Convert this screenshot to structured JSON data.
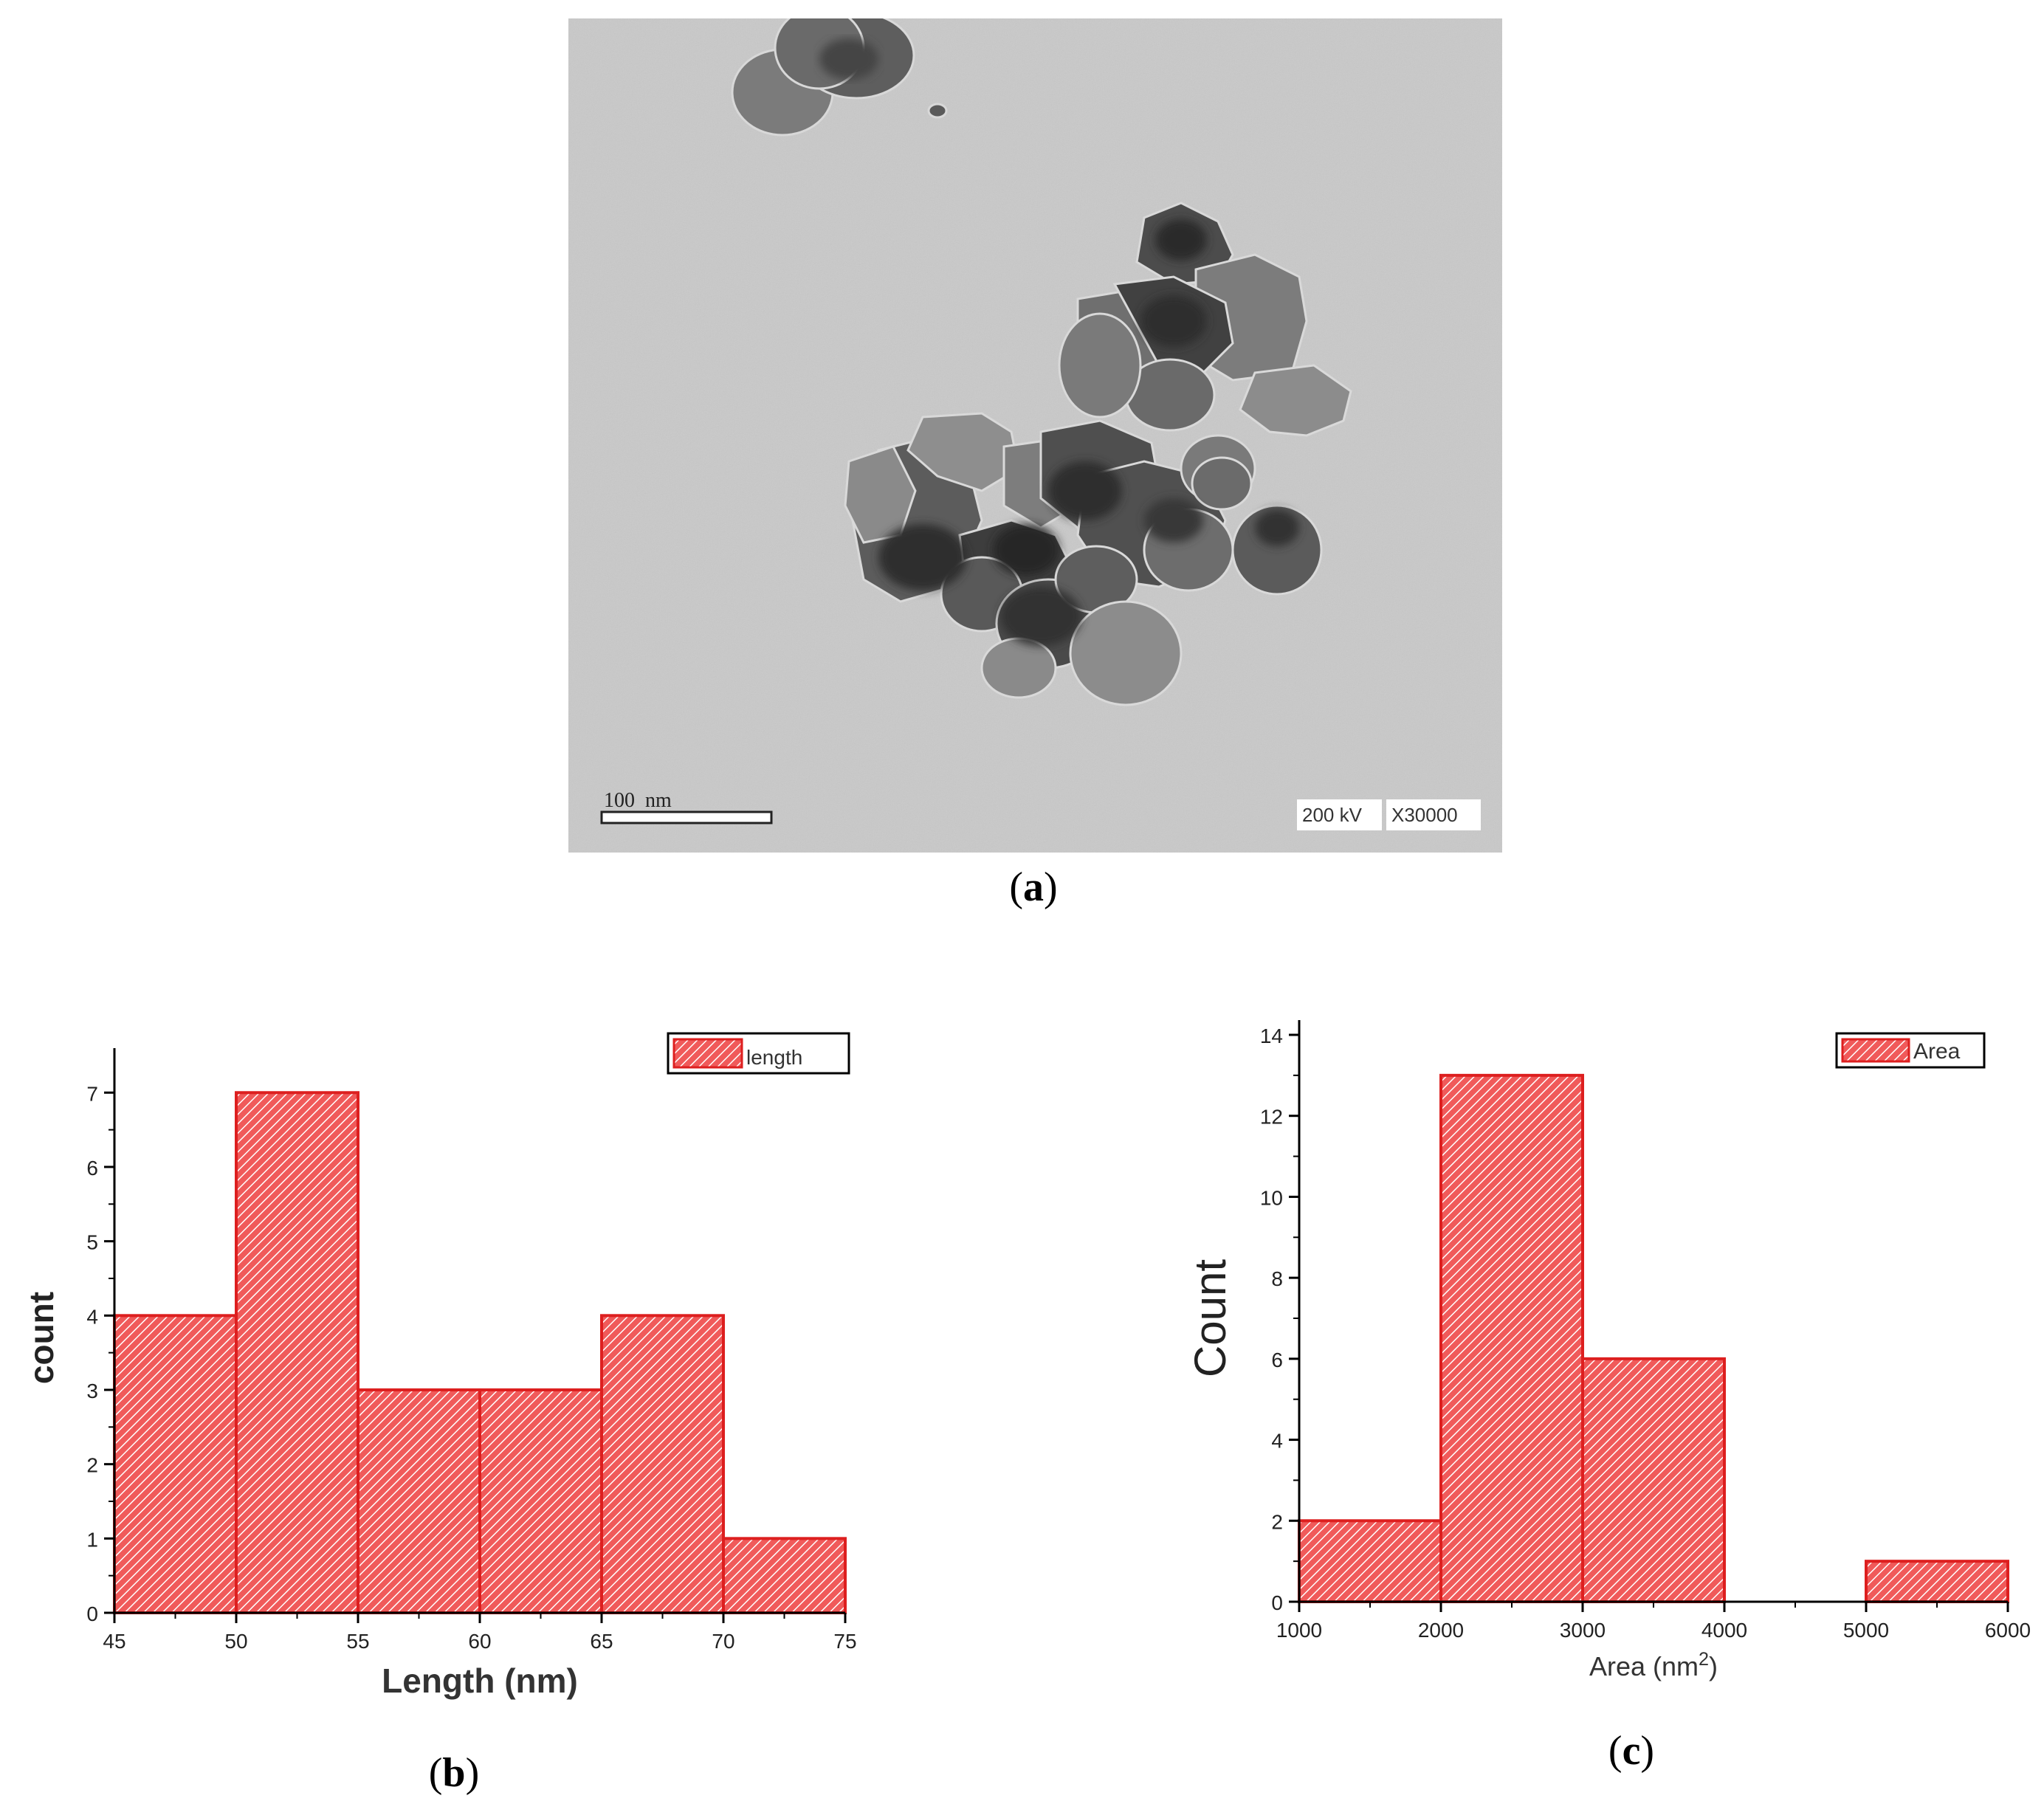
{
  "panels": {
    "a": {
      "caption_open": "(",
      "caption_letter": "a",
      "caption_close": ")"
    },
    "b": {
      "caption_open": "(",
      "caption_letter": "b",
      "caption_close": ")"
    },
    "c": {
      "caption_open": "(",
      "caption_letter": "c",
      "caption_close": ")"
    }
  },
  "tem": {
    "scale_bar_label": "100  nm",
    "voltage": "200 kV",
    "magnification": "X30000",
    "colors": {
      "background": "#c9c9c9",
      "particle_dark": "#3a3a3a",
      "particle_mid": "#6e6e6e"
    }
  },
  "colors": {
    "bar_fill": "#f05a5a",
    "bar_stroke": "#dd1f1f",
    "hatch": "#ffffff"
  },
  "chart_data": [
    {
      "type": "bar",
      "kind": "histogram",
      "bin_edges": [
        45,
        50,
        55,
        60,
        65,
        70,
        75
      ],
      "values": [
        4,
        7,
        3,
        3,
        4,
        1
      ],
      "xlabel": "Length (nm)",
      "ylabel": "count",
      "xlim": [
        45,
        75
      ],
      "ylim": [
        0,
        7.4
      ],
      "xticks": [
        "45",
        "50",
        "55",
        "60",
        "65",
        "70",
        "75"
      ],
      "yticks": [
        "0",
        "1",
        "2",
        "3",
        "4",
        "5",
        "6",
        "7"
      ],
      "legend": "length",
      "legend_position": "top-right",
      "grid": false
    },
    {
      "type": "bar",
      "kind": "histogram",
      "bin_edges": [
        1000,
        2000,
        3000,
        4000,
        5000,
        6000
      ],
      "values": [
        2,
        13,
        6,
        0,
        1
      ],
      "xlabel": "Area (nm",
      "xlabel_sup": "2",
      "xlabel_close": ")",
      "ylabel": "Count",
      "xlim": [
        1000,
        6000
      ],
      "ylim": [
        0,
        14
      ],
      "xticks": [
        "1000",
        "2000",
        "3000",
        "4000",
        "5000",
        "6000"
      ],
      "yticks": [
        "0",
        "2",
        "4",
        "6",
        "8",
        "10",
        "12",
        "14"
      ],
      "legend": "Area",
      "legend_position": "top-right",
      "grid": false
    }
  ]
}
